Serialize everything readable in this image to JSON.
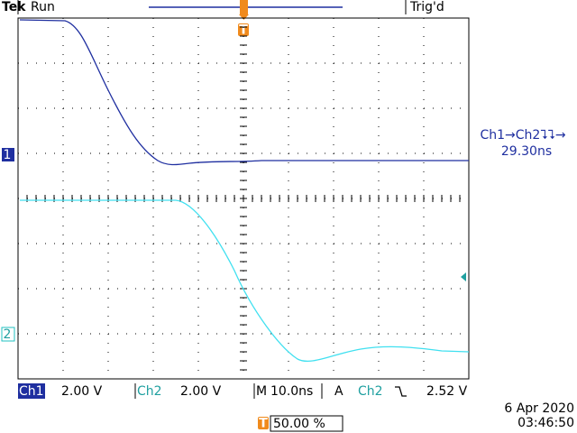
{
  "header": {
    "brand": "Tek",
    "state": "Run",
    "trigger_status": "Trig'd",
    "trigger_marker": "T"
  },
  "channels": [
    {
      "marker": "1"
    },
    {
      "marker": "2"
    }
  ],
  "measurement": {
    "label": "Ch1→Ch2⮧⮧→",
    "value": "29.30ns"
  },
  "status": {
    "ch1": "Ch1",
    "ch1_scale": "2.00 V",
    "ch2": "Ch2",
    "ch2_scale": "2.00 V",
    "time_prefix": "M",
    "timebase": "10.0ns",
    "trigger_prefix": "A",
    "trigger_source": "Ch2",
    "trigger_level": "2.52 V"
  },
  "footer": {
    "trigger_marker": "T",
    "trigger_position": "50.00 %",
    "date": "6 Apr 2020",
    "time": "03:46:50"
  }
}
